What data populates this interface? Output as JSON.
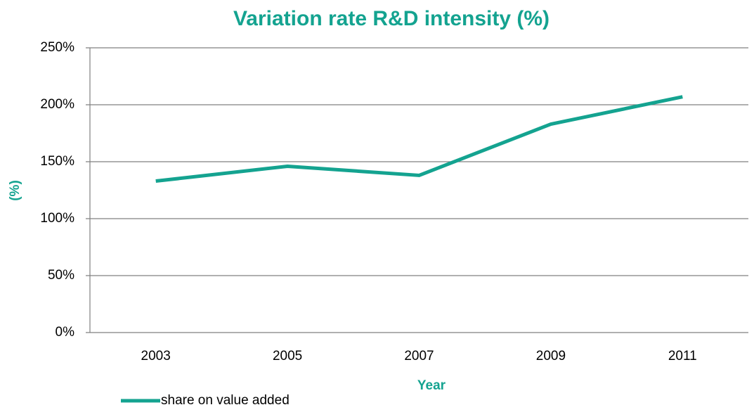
{
  "chart_data": {
    "type": "line",
    "title": "Variation rate R&D intensity (%)",
    "x_label": "Year",
    "y_label": "(%)",
    "categories": [
      "2003",
      "2005",
      "2007",
      "2009",
      "2011"
    ],
    "series": [
      {
        "name": "share on value added",
        "color": "#14a390",
        "values": [
          133,
          146,
          138,
          183,
          207
        ]
      }
    ],
    "ylim": [
      0,
      250
    ],
    "yticks": [
      {
        "value": 0,
        "label": "0%"
      },
      {
        "value": 50,
        "label": "50%"
      },
      {
        "value": 100,
        "label": "100%"
      },
      {
        "value": 150,
        "label": "150%"
      },
      {
        "value": 200,
        "label": "200%"
      },
      {
        "value": 250,
        "label": "250%"
      }
    ],
    "grid": true,
    "legend": "bottom-left"
  }
}
